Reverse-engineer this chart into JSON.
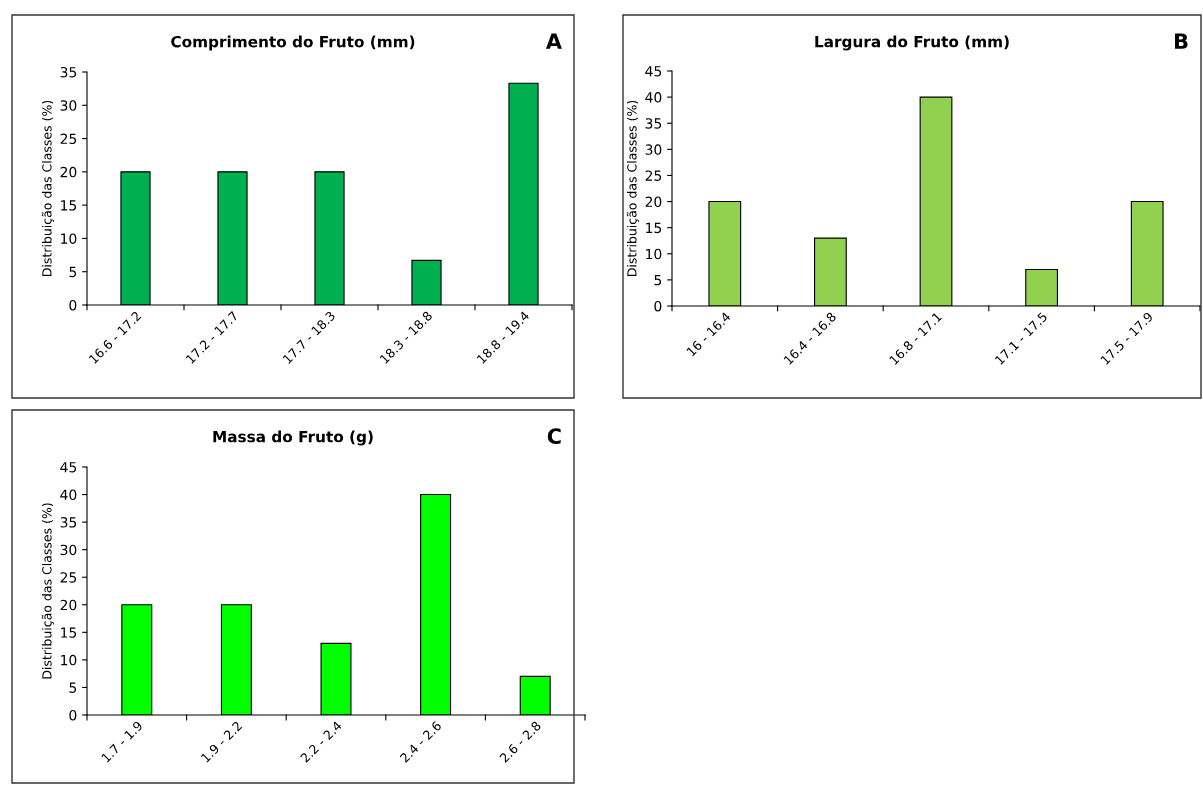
{
  "chart_data": [
    {
      "type": "bar",
      "title": "Comprimento do Fruto (mm)",
      "ylabel": "Distribuição das Classes (%)",
      "annotations": [
        "A"
      ],
      "categories": [
        "16.6 - 17.2",
        "17.2 - 17.7",
        "17.7 - 18.3",
        "18.3 - 18.8",
        "18.8 - 19.4"
      ],
      "values": [
        20,
        20,
        20,
        6.7,
        33.3
      ],
      "color": "#00b050",
      "ylim": [
        0,
        35
      ],
      "yticks": [
        0,
        5,
        10,
        15,
        20,
        25,
        30,
        35
      ],
      "grid": false,
      "legend": false
    },
    {
      "type": "bar",
      "title": "Largura do Fruto (mm)",
      "ylabel": "Distribuição das Classes (%)",
      "annotations": [
        "B"
      ],
      "categories": [
        "16 - 16.4",
        "16.4 - 16.8",
        "16.8 - 17.1",
        "17.1 - 17.5",
        "17.5 - 17.9"
      ],
      "values": [
        20,
        13,
        40,
        7,
        20
      ],
      "color": "#92d050",
      "ylim": [
        0,
        45
      ],
      "yticks": [
        0,
        5,
        10,
        15,
        20,
        25,
        30,
        35,
        40,
        45
      ],
      "grid": false,
      "legend": false
    },
    {
      "type": "bar",
      "title": "Massa do Fruto (g)",
      "ylabel": "Distribuição das Classes (%)",
      "annotations": [
        "C"
      ],
      "categories": [
        "1.7 - 1.9",
        "1.9 - 2.2",
        "2.2 - 2.4",
        "2.4 - 2.6",
        "2.6 - 2.8"
      ],
      "values": [
        20,
        20,
        13,
        40,
        7
      ],
      "color": "#00ff00",
      "ylim": [
        0,
        45
      ],
      "yticks": [
        0,
        5,
        10,
        15,
        20,
        25,
        30,
        35,
        40,
        45
      ],
      "grid": false,
      "legend": false
    }
  ]
}
